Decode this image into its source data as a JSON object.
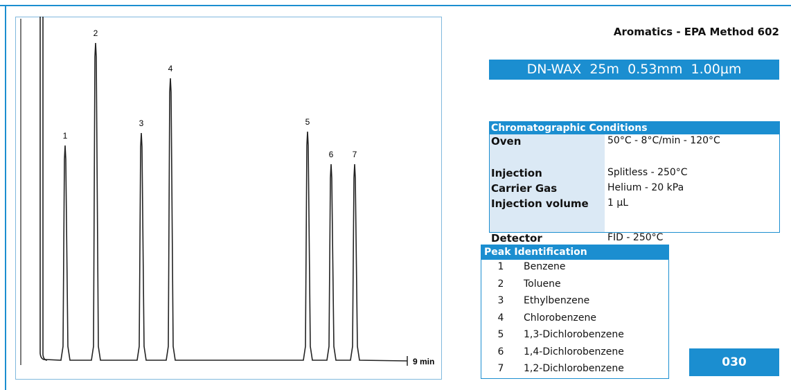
{
  "header": {
    "title": "Aromatics - EPA Method 602",
    "column": "DN-WAX  25m  0.53mm  1.00µm"
  },
  "chromatogram": {
    "peak_labels": [
      "1",
      "2",
      "3",
      "4",
      "5",
      "6",
      "7"
    ],
    "time_label": "9 min"
  },
  "conditions": {
    "title": "Chromatographic Conditions",
    "rows": [
      [
        "Oven",
        "50°C - 8°C/min - 120°C"
      ],
      [
        "Injection",
        "Splitless - 250°C"
      ],
      [
        "Carrier Gas",
        "Helium - 20 kPa"
      ],
      [
        "Injection volume",
        "1 µL"
      ],
      [
        "Detector",
        "FID - 250°C"
      ]
    ]
  },
  "peaks": {
    "title": "Peak Identification",
    "rows": [
      [
        "1",
        "Benzene"
      ],
      [
        "2",
        "Toluene"
      ],
      [
        "3",
        "Ethylbenzene"
      ],
      [
        "4",
        "Chlorobenzene"
      ],
      [
        "5",
        "1,3-Dichlorobenzene"
      ],
      [
        "6",
        "1,4-Dichlorobenzene"
      ],
      [
        "7",
        "1,2-Dichlorobenzene"
      ]
    ]
  },
  "code": "030"
}
